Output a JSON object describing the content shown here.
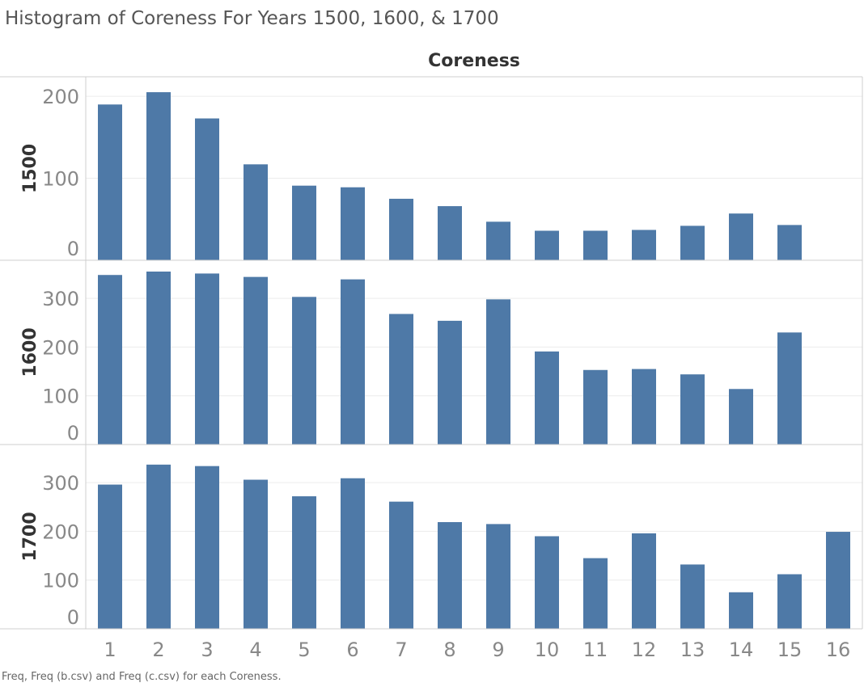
{
  "title": "Histogram of Coreness For Years 1500, 1600, & 1700",
  "footer": "Freq, Freq (b.csv) and Freq (c.csv) for each Coreness.",
  "colors": {
    "bar": "#4e79a7",
    "grid": "#ececec",
    "frame": "#cfcfcf",
    "tick_text": "#888888",
    "header_text": "#333333"
  },
  "chart_data": {
    "type": "bar",
    "x_header": "Coreness",
    "categories": [
      "1",
      "2",
      "3",
      "4",
      "5",
      "6",
      "7",
      "8",
      "9",
      "10",
      "11",
      "12",
      "13",
      "14",
      "15",
      "16"
    ],
    "grid": true,
    "series": [
      {
        "name": "1500",
        "yticks": [
          0,
          100,
          200
        ],
        "ylim": [
          0,
          210
        ],
        "values": [
          190,
          205,
          173,
          117,
          91,
          89,
          75,
          66,
          47,
          36,
          36,
          37,
          42,
          57,
          43,
          null
        ]
      },
      {
        "name": "1600",
        "yticks": [
          0,
          100,
          200,
          300
        ],
        "ylim": [
          0,
          355
        ],
        "values": [
          348,
          355,
          351,
          344,
          303,
          339,
          268,
          254,
          298,
          191,
          153,
          155,
          144,
          114,
          230,
          null
        ]
      },
      {
        "name": "1700",
        "yticks": [
          0,
          100,
          200,
          300
        ],
        "ylim": [
          0,
          355
        ],
        "values": [
          296,
          337,
          334,
          306,
          272,
          309,
          261,
          219,
          215,
          190,
          145,
          196,
          132,
          75,
          112,
          199
        ]
      }
    ]
  }
}
